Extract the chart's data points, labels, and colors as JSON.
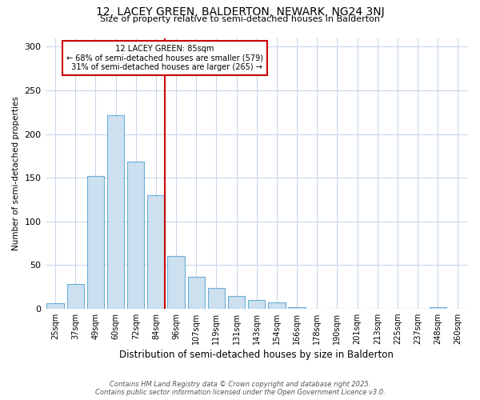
{
  "title_line1": "12, LACEY GREEN, BALDERTON, NEWARK, NG24 3NJ",
  "title_line2": "Size of property relative to semi-detached houses in Balderton",
  "xlabel": "Distribution of semi-detached houses by size in Balderton",
  "ylabel": "Number of semi-detached properties",
  "footnote1": "Contains HM Land Registry data © Crown copyright and database right 2025.",
  "footnote2": "Contains public sector information licensed under the Open Government Licence v3.0.",
  "categories": [
    "25sqm",
    "37sqm",
    "49sqm",
    "60sqm",
    "72sqm",
    "84sqm",
    "96sqm",
    "107sqm",
    "119sqm",
    "131sqm",
    "143sqm",
    "154sqm",
    "166sqm",
    "178sqm",
    "190sqm",
    "201sqm",
    "213sqm",
    "225sqm",
    "237sqm",
    "248sqm",
    "260sqm"
  ],
  "values": [
    6,
    28,
    152,
    222,
    168,
    130,
    60,
    36,
    24,
    14,
    10,
    7,
    2,
    0,
    0,
    0,
    0,
    0,
    0,
    2,
    0
  ],
  "bar_color": "#cce0f0",
  "bar_edge_color": "#6baed6",
  "property_label": "12 LACEY GREEN: 85sqm",
  "pct_smaller": 68,
  "n_smaller": 579,
  "pct_larger": 31,
  "n_larger": 265,
  "vline_color": "#cc0000",
  "annotation_box_edge": "#cc0000",
  "ylim": [
    0,
    310
  ],
  "yticks": [
    0,
    50,
    100,
    150,
    200,
    250,
    300
  ],
  "background_color": "#ffffff",
  "grid_color": "#c8d8e8",
  "vline_index": 5
}
